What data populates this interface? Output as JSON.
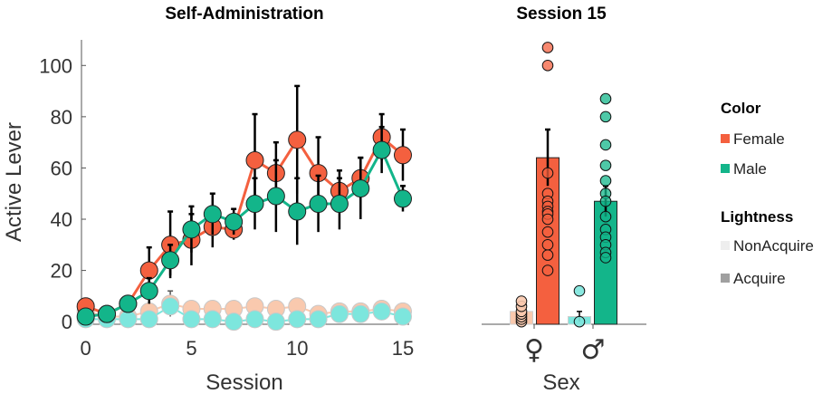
{
  "colors": {
    "female": "#f4603f",
    "male": "#13b58a",
    "female_light": "#f9c9ae",
    "male_light": "#7de6dd",
    "error": "#000000"
  },
  "chart_data": [
    {
      "type": "line",
      "title": "Self-Administration",
      "xlabel": "Session",
      "ylabel": "Active Lever",
      "xlim": [
        -0.2,
        15.3
      ],
      "ylim": [
        -1,
        110
      ],
      "xticks": [
        0,
        5,
        10,
        15
      ],
      "yticks": [
        0,
        20,
        40,
        60,
        80,
        100
      ],
      "series": [
        {
          "sex": "Female",
          "lightness": "NonAcquire",
          "color": "#f9c9ae",
          "x": [
            0,
            1,
            2,
            3,
            4,
            5,
            6,
            7,
            8,
            9,
            10,
            11,
            12,
            13,
            14,
            15
          ],
          "y": [
            4,
            2,
            2,
            4,
            7,
            5,
            5,
            5,
            6,
            5,
            6,
            3,
            4,
            4,
            5,
            4
          ],
          "err": [
            1,
            1,
            1,
            1,
            5,
            1,
            1,
            1,
            1,
            1,
            1,
            1,
            1,
            1,
            1,
            1
          ]
        },
        {
          "sex": "Male",
          "lightness": "NonAcquire",
          "color": "#7de6dd",
          "x": [
            0,
            1,
            2,
            3,
            4,
            5,
            6,
            7,
            8,
            9,
            10,
            11,
            12,
            13,
            14,
            15
          ],
          "y": [
            1,
            1,
            1,
            1,
            6,
            1,
            1,
            0,
            1,
            0,
            1,
            1,
            3,
            3,
            4,
            2
          ],
          "err": [
            1,
            1,
            1,
            1,
            1,
            1,
            1,
            1,
            1,
            1,
            1,
            1,
            2,
            1,
            2,
            1
          ]
        },
        {
          "sex": "Female",
          "lightness": "Acquire",
          "color": "#f4603f",
          "x": [
            0,
            1,
            2,
            3,
            4,
            5,
            6,
            7,
            8,
            9,
            10,
            11,
            12,
            13,
            14,
            15
          ],
          "y": [
            6,
            3,
            7,
            20,
            30,
            32,
            37,
            36,
            63,
            58,
            71,
            58,
            51,
            56,
            72,
            65
          ],
          "err": [
            2,
            1,
            2,
            9,
            13,
            10,
            8,
            4,
            18,
            12,
            21,
            14,
            8,
            8,
            9,
            10
          ]
        },
        {
          "sex": "Male",
          "lightness": "Acquire",
          "color": "#13b58a",
          "x": [
            0,
            1,
            2,
            3,
            4,
            5,
            6,
            7,
            8,
            9,
            10,
            11,
            12,
            13,
            14,
            15
          ],
          "y": [
            2,
            3,
            7,
            12,
            24,
            36,
            42,
            39,
            46,
            49,
            43,
            46,
            46,
            52,
            67,
            48
          ],
          "err": [
            1,
            1,
            2,
            5,
            6,
            9,
            8,
            5,
            10,
            14,
            13,
            11,
            10,
            12,
            9,
            5
          ]
        }
      ]
    },
    {
      "type": "bar",
      "title": "Session 15",
      "xlabel": "Sex",
      "ylabel": "",
      "ylim": [
        -1,
        110
      ],
      "categories": [
        "♀",
        "♂"
      ],
      "bars": [
        {
          "sex": "Female",
          "lightness": "NonAcquire",
          "value": 4,
          "err": 1,
          "color": "#f9c9ae",
          "points": [
            0,
            1,
            2,
            3,
            4,
            6,
            8
          ]
        },
        {
          "sex": "Female",
          "lightness": "Acquire",
          "value": 64,
          "err": 11,
          "color": "#f4603f",
          "points": [
            107,
            100,
            58,
            50,
            47,
            45,
            43,
            42,
            40,
            35,
            30,
            26,
            20
          ]
        },
        {
          "sex": "Male",
          "lightness": "NonAcquire",
          "value": 2,
          "err": 2,
          "color": "#7de6dd",
          "points": [
            12,
            0
          ]
        },
        {
          "sex": "Male",
          "lightness": "Acquire",
          "value": 47,
          "err": 6,
          "color": "#13b58a",
          "points": [
            87,
            80,
            69,
            61,
            55,
            50,
            47,
            41,
            36,
            33,
            30,
            27,
            25
          ]
        }
      ]
    }
  ],
  "legend": {
    "color_title": "Color",
    "color_items": [
      {
        "label": "Female",
        "swatch": "#f4603f"
      },
      {
        "label": "Male",
        "swatch": "#13b58a"
      }
    ],
    "lightness_title": "Lightness",
    "lightness_items": [
      {
        "label": "NonAcquire",
        "swatch": "#eeeeee"
      },
      {
        "label": "Acquire",
        "swatch": "#a0a0a0"
      }
    ]
  }
}
